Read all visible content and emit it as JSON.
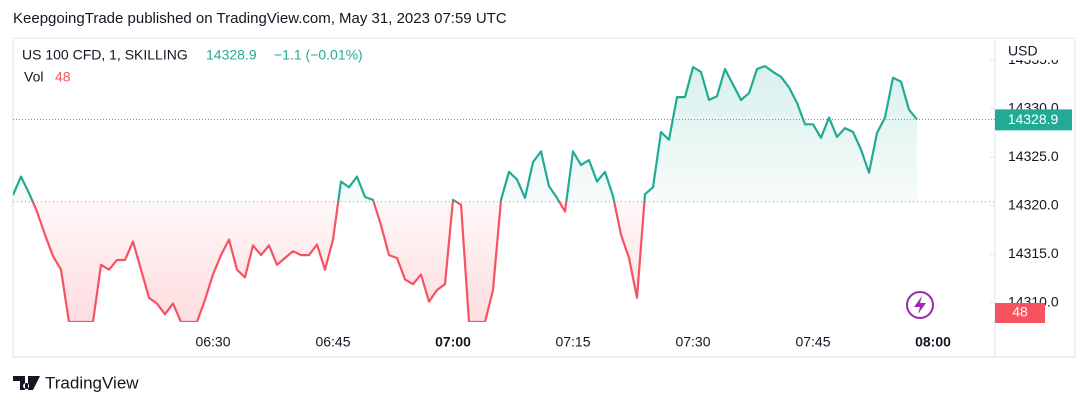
{
  "header": "KeepgoingTrade published on TradingView.com, May 31, 2023 07:59 UTC",
  "footer": "TradingView",
  "chart_data": {
    "type": "line",
    "symbol": "US 100 CFD, 1, SKILLING",
    "change": "−1.1 (−0.01%)",
    "volume_label": "Vol",
    "volume_value": 48,
    "currency": "USD",
    "baseline": 14320.4,
    "up_color": "#22ab94",
    "down_color": "#f7525f",
    "x": [
      "06:05",
      "06:06",
      "06:07",
      "06:08",
      "06:09",
      "06:10",
      "06:11",
      "06:12",
      "06:13",
      "06:14",
      "06:15",
      "06:16",
      "06:17",
      "06:18",
      "06:19",
      "06:20",
      "06:21",
      "06:22",
      "06:23",
      "06:24",
      "06:25",
      "06:26",
      "06:27",
      "06:28",
      "06:29",
      "06:30",
      "06:31",
      "06:32",
      "06:33",
      "06:34",
      "06:35",
      "06:36",
      "06:37",
      "06:38",
      "06:39",
      "06:40",
      "06:41",
      "06:42",
      "06:43",
      "06:44",
      "06:45",
      "06:46",
      "06:47",
      "06:48",
      "06:49",
      "06:50",
      "06:51",
      "06:52",
      "06:53",
      "06:54",
      "06:55",
      "06:56",
      "06:57",
      "06:58",
      "06:59",
      "07:00",
      "07:01",
      "07:02",
      "07:03",
      "07:04",
      "07:05",
      "07:06",
      "07:07",
      "07:08",
      "07:09",
      "07:10",
      "07:11",
      "07:12",
      "07:13",
      "07:14",
      "07:15",
      "07:16",
      "07:17",
      "07:18",
      "07:19",
      "07:20",
      "07:21",
      "07:22",
      "07:23",
      "07:24",
      "07:25",
      "07:26",
      "07:27",
      "07:28",
      "07:29",
      "07:30",
      "07:31",
      "07:32",
      "07:33",
      "07:34",
      "07:35",
      "07:36",
      "07:37",
      "07:38",
      "07:39",
      "07:40",
      "07:41",
      "07:42",
      "07:43",
      "07:44",
      "07:45",
      "07:46",
      "07:47",
      "07:48",
      "07:49",
      "07:50",
      "07:51",
      "07:52",
      "07:53",
      "07:54",
      "07:55",
      "07:56",
      "07:57",
      "07:58"
    ],
    "values": [
      14321.1,
      14323.0,
      14321.3,
      14319.4,
      14317.0,
      14314.8,
      14313.4,
      14308.0,
      14308.0,
      14308.0,
      14308.0,
      14313.9,
      14313.4,
      14314.4,
      14314.4,
      14316.3,
      14313.4,
      14310.5,
      14309.9,
      14308.8,
      14309.9,
      14308.0,
      14308.0,
      14308.0,
      14310.3,
      14312.9,
      14314.9,
      14316.5,
      14313.4,
      14312.6,
      14315.9,
      14314.9,
      14315.9,
      14313.9,
      14314.6,
      14315.3,
      14314.9,
      14314.9,
      14316.0,
      14313.4,
      14316.5,
      14322.5,
      14321.9,
      14323.0,
      14320.9,
      14320.6,
      14318.0,
      14314.9,
      14314.6,
      14312.4,
      14311.9,
      14312.9,
      14310.1,
      14311.3,
      14311.9,
      14320.6,
      14320.1,
      14308.0,
      14308.0,
      14308.0,
      14311.3,
      14320.6,
      14323.5,
      14322.7,
      14320.8,
      14324.5,
      14325.6,
      14322.0,
      14320.8,
      14319.4,
      14325.6,
      14324.2,
      14324.7,
      14322.5,
      14323.5,
      14321.0,
      14317.0,
      14314.6,
      14310.5,
      14321.2,
      14321.9,
      14327.6,
      14326.8,
      14331.2,
      14331.2,
      14334.3,
      14333.8,
      14330.9,
      14331.3,
      14334.1,
      14332.5,
      14330.9,
      14331.6,
      14334.1,
      14334.4,
      14333.8,
      14333.3,
      14332.2,
      14330.6,
      14328.4,
      14328.4,
      14327.0,
      14329.1,
      14327.1,
      14328.0,
      14327.6,
      14325.8,
      14323.4,
      14327.5,
      14329.1,
      14333.2,
      14332.8,
      14329.9,
      14328.9
    ],
    "ylim": [
      14308,
      14337.3
    ],
    "yticks": [
      {
        "value": 14310,
        "label": "14310.0"
      },
      {
        "value": 14315,
        "label": "14315.0"
      },
      {
        "value": 14320,
        "label": "14320.0"
      },
      {
        "value": 14325,
        "label": "14325.0"
      },
      {
        "value": 14330,
        "label": "14330.0"
      },
      {
        "value": 14335,
        "label": "14335.0"
      }
    ],
    "xticks": [
      "06:30",
      "06:45",
      "07:00",
      "07:15",
      "07:30",
      "07:45",
      "08:00"
    ]
  }
}
